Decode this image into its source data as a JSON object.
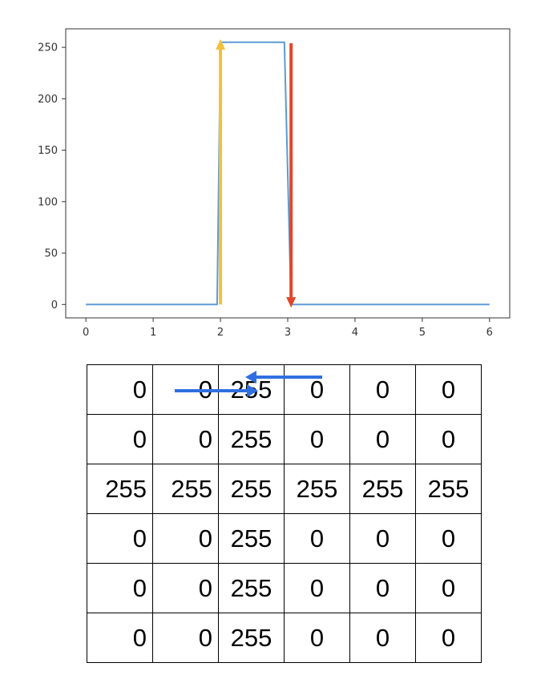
{
  "chart_data": {
    "type": "line",
    "x": [
      0,
      1,
      1.95,
      2,
      2.95,
      3.05,
      4,
      5,
      6
    ],
    "series": [
      {
        "values": [
          0,
          0,
          0,
          255,
          255,
          0,
          0,
          0,
          0
        ],
        "color": "#5b9bd5"
      }
    ],
    "xlim": [
      -0.3,
      6.3
    ],
    "ylim": [
      -13,
      268
    ],
    "xticks": [
      0,
      1,
      2,
      3,
      4,
      5,
      6
    ],
    "yticks": [
      0,
      50,
      100,
      150,
      200,
      250
    ],
    "grid": false,
    "annotations": [
      {
        "kind": "arrow",
        "direction": "up",
        "x": 2.0,
        "y_from": 0,
        "y_to": 258,
        "color": "#f4c03b"
      },
      {
        "kind": "arrow",
        "direction": "down",
        "x": 3.05,
        "y_from": 254,
        "y_to": -3,
        "color": "#e4452a"
      }
    ]
  },
  "matrix": {
    "rows": [
      [
        "0",
        "0",
        "255",
        "0",
        "0",
        "0"
      ],
      [
        "0",
        "0",
        "255",
        "0",
        "0",
        "0"
      ],
      [
        "255",
        "255",
        "255",
        "255",
        "255",
        "255"
      ],
      [
        "0",
        "0",
        "255",
        "0",
        "0",
        "0"
      ],
      [
        "0",
        "0",
        "255",
        "0",
        "0",
        "0"
      ],
      [
        "0",
        "0",
        "255",
        "0",
        "0",
        "0"
      ]
    ],
    "arrow_color": "#2f6fe0"
  }
}
